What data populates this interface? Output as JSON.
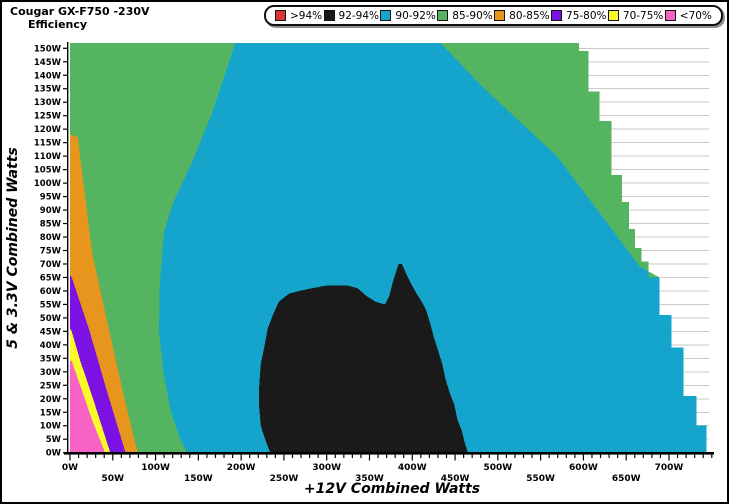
{
  "window": {
    "title_line1": "Cougar GX-F750 -230V",
    "title_line2": "Efficiency"
  },
  "legend": {
    "items": [
      {
        "label": ">94%",
        "color": "#dd3333"
      },
      {
        "label": "92-94%",
        "color": "#1a1a1a"
      },
      {
        "label": "90-92%",
        "color": "#14a4cc"
      },
      {
        "label": "85-90%",
        "color": "#55b45f"
      },
      {
        "label": "80-85%",
        "color": "#e8951d"
      },
      {
        "label": "75-80%",
        "color": "#7b11e3"
      },
      {
        "label": "70-75%",
        "color": "#fafa28"
      },
      {
        "label": "<70%",
        "color": "#f763c5"
      }
    ]
  },
  "chart_data": {
    "type": "heatmap",
    "title": "Cougar GX-F750 -230V Efficiency",
    "xlabel": "+12V Combined Watts",
    "ylabel": "5 & 3.3V Combined Watts",
    "xlim": [
      0,
      752
    ],
    "ylim": [
      0,
      152
    ],
    "grid": "horizontal-5W",
    "legend_position": "top",
    "total_power_limit_w": 745,
    "x_major_ticks_w": [
      0,
      50,
      100,
      150,
      200,
      250,
      300,
      350,
      400,
      450,
      500,
      550,
      600,
      650,
      700
    ],
    "x_major_tick_labels": [
      "0W",
      "50W",
      "100W",
      "150W",
      "200W",
      "250W",
      "300W",
      "350W",
      "400W",
      "450W",
      "500W",
      "550W",
      "600W",
      "650W",
      "700W"
    ],
    "x_minor_tick_step_w": 10,
    "y_ticks_w": [
      0,
      5,
      10,
      15,
      20,
      25,
      30,
      35,
      40,
      45,
      50,
      55,
      60,
      65,
      70,
      75,
      80,
      85,
      90,
      95,
      100,
      105,
      110,
      115,
      120,
      125,
      130,
      135,
      140,
      145,
      150
    ],
    "y_tick_labels": [
      "0W",
      "5W",
      "10W",
      "15W",
      "20W",
      "25W",
      "30W",
      "35W",
      "40W",
      "45W",
      "50W",
      "55W",
      "60W",
      "65W",
      "70W",
      "75W",
      "80W",
      "85W",
      "90W",
      "95W",
      "100W",
      "105W",
      "110W",
      "115W",
      "120W",
      "125W",
      "130W",
      "135W",
      "140W",
      "145W",
      "150W"
    ],
    "regions": [
      {
        "band": "90-92%",
        "color": "#14a4cc",
        "name": "data-region-90-92",
        "points": [
          [
            0,
            152
          ],
          [
            595,
            152
          ],
          [
            595,
            149
          ],
          [
            606,
            149
          ],
          [
            606,
            134
          ],
          [
            619,
            134
          ],
          [
            619,
            123
          ],
          [
            633,
            123
          ],
          [
            633,
            103
          ],
          [
            645,
            103
          ],
          [
            645,
            93
          ],
          [
            653,
            93
          ],
          [
            653,
            83
          ],
          [
            660,
            83
          ],
          [
            660,
            76
          ],
          [
            668,
            76
          ],
          [
            668,
            71
          ],
          [
            676,
            71
          ],
          [
            676,
            65
          ],
          [
            689,
            65
          ],
          [
            689,
            51
          ],
          [
            703,
            51
          ],
          [
            703,
            39
          ],
          [
            717,
            39
          ],
          [
            717,
            21
          ],
          [
            732,
            21
          ],
          [
            732,
            10
          ],
          [
            744,
            10
          ],
          [
            744,
            0
          ],
          [
            0,
            0
          ]
        ]
      },
      {
        "band": "85-90%",
        "color": "#55b45f",
        "name": "region-85-90-left",
        "points": [
          [
            0,
            152
          ],
          [
            193,
            152
          ],
          [
            166,
            126
          ],
          [
            143,
            108
          ],
          [
            121,
            93
          ],
          [
            110,
            82
          ],
          [
            105,
            63
          ],
          [
            104,
            45
          ],
          [
            109,
            30
          ],
          [
            118,
            15
          ],
          [
            130,
            4
          ],
          [
            137,
            0
          ],
          [
            0,
            0
          ]
        ]
      },
      {
        "band": "85-90%",
        "color": "#55b45f",
        "name": "region-85-90-top-right",
        "points": [
          [
            433,
            152
          ],
          [
            595,
            152
          ],
          [
            595,
            149
          ],
          [
            606,
            149
          ],
          [
            606,
            134
          ],
          [
            619,
            134
          ],
          [
            619,
            123
          ],
          [
            633,
            123
          ],
          [
            633,
            103
          ],
          [
            645,
            103
          ],
          [
            645,
            93
          ],
          [
            653,
            93
          ],
          [
            653,
            83
          ],
          [
            660,
            83
          ],
          [
            660,
            76
          ],
          [
            668,
            76
          ],
          [
            668,
            71
          ],
          [
            676,
            71
          ],
          [
            676,
            65
          ],
          [
            689,
            65
          ],
          [
            666,
            69
          ],
          [
            569,
            110
          ],
          [
            481,
            136
          ],
          [
            433,
            152
          ]
        ]
      },
      {
        "band": "80-85%",
        "color": "#e8951d",
        "name": "region-80-85",
        "points": [
          [
            0,
            118
          ],
          [
            9,
            117
          ],
          [
            26,
            74
          ],
          [
            46,
            45
          ],
          [
            63,
            21
          ],
          [
            79,
            0
          ],
          [
            0,
            0
          ]
        ]
      },
      {
        "band": "75-80%",
        "color": "#7b11e3",
        "name": "region-75-80",
        "points": [
          [
            0,
            66
          ],
          [
            2,
            65
          ],
          [
            23,
            45
          ],
          [
            43,
            23
          ],
          [
            65,
            0
          ],
          [
            0,
            0
          ]
        ]
      },
      {
        "band": "70-75%",
        "color": "#fafa28",
        "name": "region-70-75",
        "points": [
          [
            0,
            46
          ],
          [
            2,
            45
          ],
          [
            12,
            34
          ],
          [
            26,
            21
          ],
          [
            47,
            0
          ],
          [
            0,
            0
          ]
        ]
      },
      {
        "band": "<70%",
        "color": "#f763c5",
        "name": "region-under-70",
        "points": [
          [
            0,
            34
          ],
          [
            2,
            34
          ],
          [
            14,
            23
          ],
          [
            26,
            12
          ],
          [
            41,
            0
          ],
          [
            0,
            0
          ]
        ]
      },
      {
        "band": "92-94%",
        "color": "#1a1a1a",
        "name": "region-92-94",
        "points": [
          [
            234,
            0
          ],
          [
            228,
            5
          ],
          [
            223,
            10
          ],
          [
            221,
            17
          ],
          [
            221,
            24
          ],
          [
            223,
            33
          ],
          [
            227,
            39
          ],
          [
            231,
            46
          ],
          [
            237,
            51
          ],
          [
            244,
            56
          ],
          [
            256,
            59
          ],
          [
            268,
            60
          ],
          [
            283,
            61
          ],
          [
            300,
            62
          ],
          [
            324,
            62
          ],
          [
            336,
            61
          ],
          [
            347,
            58
          ],
          [
            357,
            56
          ],
          [
            368,
            55
          ],
          [
            373,
            58
          ],
          [
            377,
            63
          ],
          [
            381,
            67
          ],
          [
            384,
            70
          ],
          [
            388,
            70
          ],
          [
            392,
            67
          ],
          [
            398,
            63
          ],
          [
            405,
            59
          ],
          [
            411,
            56
          ],
          [
            416,
            53
          ],
          [
            421,
            48
          ],
          [
            425,
            43
          ],
          [
            430,
            38
          ],
          [
            435,
            33
          ],
          [
            439,
            27
          ],
          [
            444,
            22
          ],
          [
            449,
            18
          ],
          [
            453,
            12
          ],
          [
            458,
            8
          ],
          [
            461,
            4
          ],
          [
            465,
            0
          ]
        ]
      }
    ],
    "colors": {
      "gridline": "#c9c9c9",
      "axis": "#000000",
      "background": "#ffffff"
    }
  }
}
